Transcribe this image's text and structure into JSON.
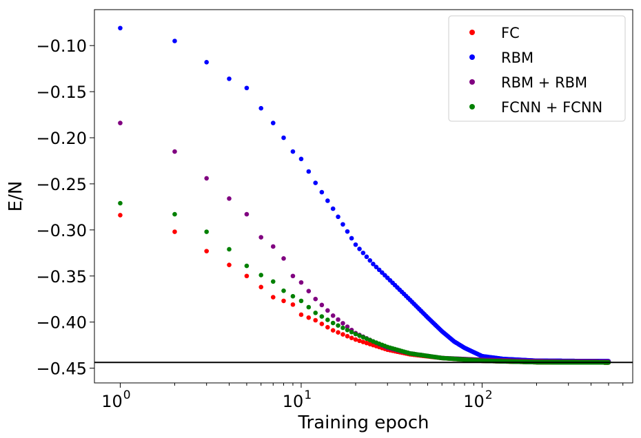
{
  "chart_data": {
    "type": "scatter",
    "xlabel": "Training epoch",
    "ylabel": "E/N",
    "xscale": "log",
    "xlim": [
      0.72,
      680
    ],
    "ylim": [
      -0.466,
      -0.061
    ],
    "x_ticks": [
      {
        "value": 1,
        "base": "10",
        "exp": "0"
      },
      {
        "value": 10,
        "base": "10",
        "exp": "1"
      },
      {
        "value": 100,
        "base": "10",
        "exp": "2"
      }
    ],
    "y_ticks": [
      {
        "value": -0.1,
        "label": "−0.10"
      },
      {
        "value": -0.15,
        "label": "−0.15"
      },
      {
        "value": -0.2,
        "label": "−0.20"
      },
      {
        "value": -0.25,
        "label": "−0.25"
      },
      {
        "value": -0.3,
        "label": "−0.30"
      },
      {
        "value": -0.35,
        "label": "−0.35"
      },
      {
        "value": -0.4,
        "label": "−0.40"
      },
      {
        "value": -0.45,
        "label": "−0.45"
      }
    ],
    "reference_line": {
      "y": -0.4438,
      "color": "#000000"
    },
    "legend_position": "top-right",
    "epochs": [
      1,
      500
    ],
    "series": [
      {
        "name": "FC",
        "color": "#ff0000",
        "anchors": [
          [
            1,
            -0.284
          ],
          [
            2,
            -0.302
          ],
          [
            3,
            -0.323
          ],
          [
            4,
            -0.338
          ],
          [
            5,
            -0.35
          ],
          [
            6,
            -0.362
          ],
          [
            7,
            -0.373
          ],
          [
            8,
            -0.377
          ],
          [
            9,
            -0.381
          ],
          [
            10,
            -0.392
          ],
          [
            12,
            -0.398
          ],
          [
            15,
            -0.409
          ],
          [
            20,
            -0.419
          ],
          [
            25,
            -0.425
          ],
          [
            30,
            -0.43
          ],
          [
            40,
            -0.435
          ],
          [
            60,
            -0.439
          ],
          [
            100,
            -0.442
          ],
          [
            200,
            -0.4435
          ],
          [
            500,
            -0.4438
          ]
        ]
      },
      {
        "name": "RBM",
        "color": "#0000ff",
        "anchors": [
          [
            1,
            -0.081
          ],
          [
            2,
            -0.095
          ],
          [
            3,
            -0.118
          ],
          [
            4,
            -0.136
          ],
          [
            5,
            -0.146
          ],
          [
            6,
            -0.168
          ],
          [
            7,
            -0.184
          ],
          [
            8,
            -0.2
          ],
          [
            9,
            -0.215
          ],
          [
            10,
            -0.223
          ],
          [
            12,
            -0.249
          ],
          [
            15,
            -0.277
          ],
          [
            20,
            -0.316
          ],
          [
            25,
            -0.337
          ],
          [
            30,
            -0.352
          ],
          [
            40,
            -0.376
          ],
          [
            50,
            -0.395
          ],
          [
            60,
            -0.41
          ],
          [
            70,
            -0.421
          ],
          [
            80,
            -0.428
          ],
          [
            100,
            -0.437
          ],
          [
            130,
            -0.44
          ],
          [
            200,
            -0.442
          ],
          [
            500,
            -0.4425
          ]
        ]
      },
      {
        "name": "RBM + RBM",
        "color": "#800080",
        "anchors": [
          [
            1,
            -0.184
          ],
          [
            2,
            -0.215
          ],
          [
            3,
            -0.244
          ],
          [
            4,
            -0.266
          ],
          [
            5,
            -0.283
          ],
          [
            6,
            -0.308
          ],
          [
            7,
            -0.318
          ],
          [
            8,
            -0.331
          ],
          [
            9,
            -0.35
          ],
          [
            10,
            -0.357
          ],
          [
            12,
            -0.375
          ],
          [
            15,
            -0.393
          ],
          [
            20,
            -0.412
          ],
          [
            25,
            -0.421
          ],
          [
            30,
            -0.428
          ],
          [
            40,
            -0.434
          ],
          [
            60,
            -0.439
          ],
          [
            100,
            -0.441
          ],
          [
            200,
            -0.4425
          ],
          [
            500,
            -0.443
          ]
        ]
      },
      {
        "name": "FCNN + FCNN",
        "color": "#008000",
        "anchors": [
          [
            1,
            -0.271
          ],
          [
            2,
            -0.283
          ],
          [
            3,
            -0.302
          ],
          [
            4,
            -0.321
          ],
          [
            5,
            -0.339
          ],
          [
            6,
            -0.349
          ],
          [
            7,
            -0.356
          ],
          [
            8,
            -0.366
          ],
          [
            9,
            -0.372
          ],
          [
            10,
            -0.377
          ],
          [
            12,
            -0.39
          ],
          [
            15,
            -0.401
          ],
          [
            20,
            -0.413
          ],
          [
            25,
            -0.421
          ],
          [
            30,
            -0.427
          ],
          [
            40,
            -0.434
          ],
          [
            60,
            -0.439
          ],
          [
            100,
            -0.442
          ],
          [
            200,
            -0.4435
          ],
          [
            500,
            -0.4438
          ]
        ]
      }
    ]
  }
}
